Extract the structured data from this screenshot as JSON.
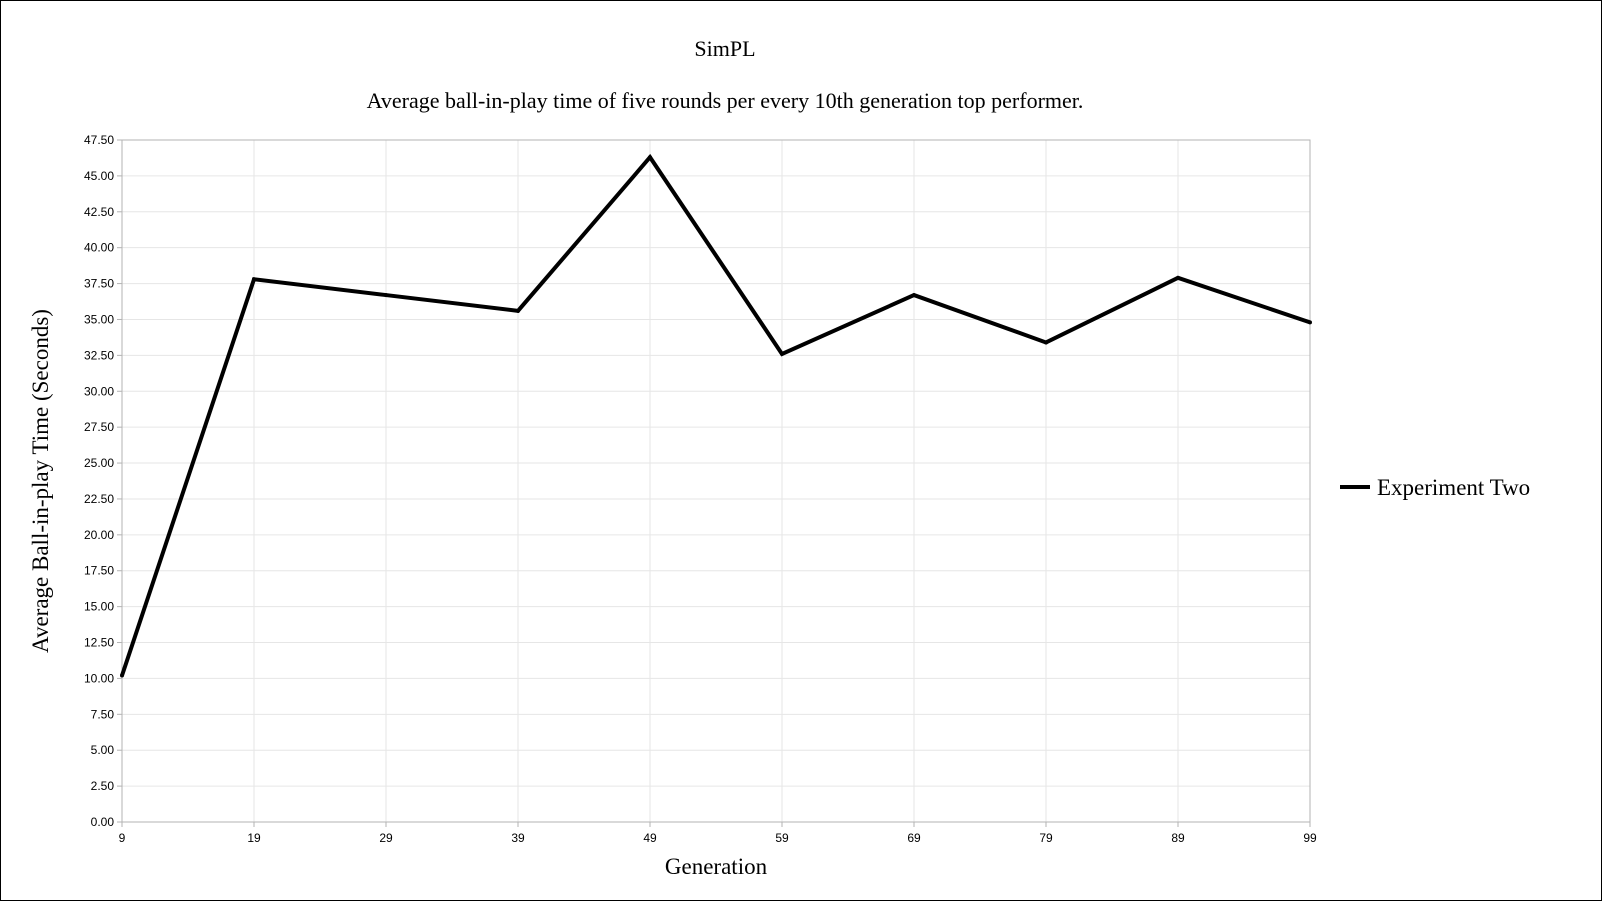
{
  "chart_data": {
    "type": "line",
    "title": "SimPL",
    "subtitle": "Average ball-in-play time of five rounds per every 10th generation top performer.",
    "xlabel": "Generation",
    "ylabel": "Average Ball-in-play Time (Seconds)",
    "x": [
      9,
      19,
      29,
      39,
      49,
      59,
      69,
      79,
      89,
      99
    ],
    "x_tick_labels": [
      "9",
      "19",
      "29",
      "39",
      "49",
      "59",
      "69",
      "79",
      "89",
      "99"
    ],
    "y_tick_labels": [
      "0.00",
      "2.50",
      "5.00",
      "7.50",
      "10.00",
      "12.50",
      "15.00",
      "17.50",
      "20.00",
      "22.50",
      "25.00",
      "27.50",
      "30.00",
      "32.50",
      "35.00",
      "37.50",
      "40.00",
      "42.50",
      "45.00",
      "47.50"
    ],
    "ylim": [
      0,
      47.5
    ],
    "grid": true,
    "legend_position": "right",
    "series": [
      {
        "name": "Experiment Two",
        "color": "#000000",
        "values": [
          10.2,
          37.8,
          36.7,
          35.6,
          46.3,
          32.6,
          36.7,
          33.4,
          37.9,
          34.8
        ]
      }
    ]
  }
}
